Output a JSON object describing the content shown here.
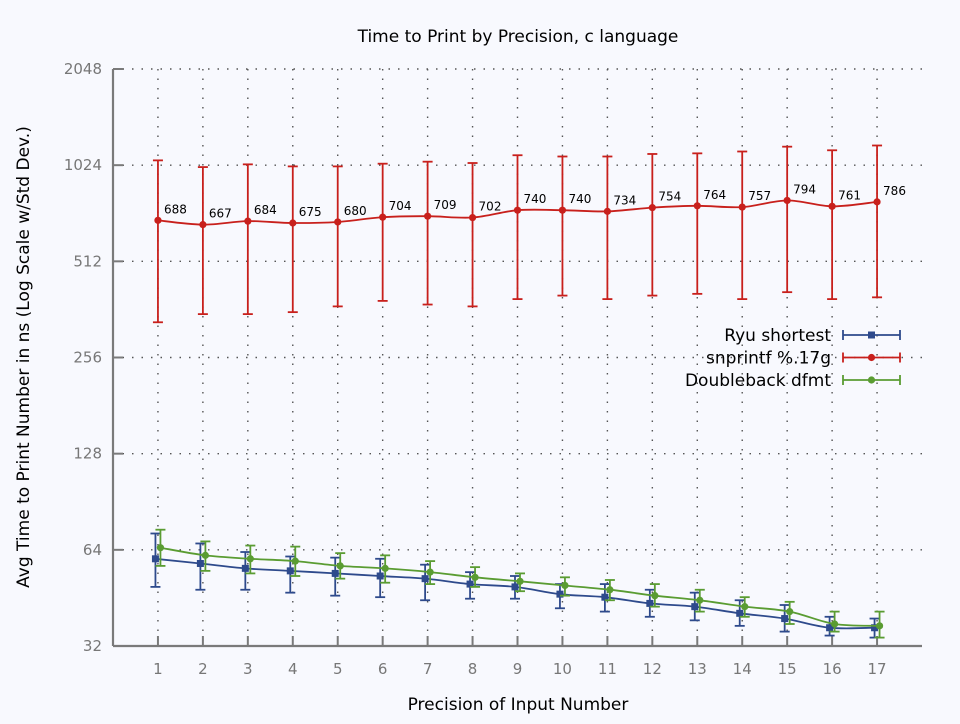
{
  "chart_data": {
    "type": "line",
    "title": "Time to Print by Precision, c language",
    "xlabel": "Precision of Input Number",
    "ylabel": "Avg Time to Print Number in ns (Log Scale w/Std Dev.)",
    "y_scale": "log2",
    "ylim": [
      32,
      2048
    ],
    "xlim": [
      0,
      18
    ],
    "x": [
      1,
      2,
      3,
      4,
      5,
      6,
      7,
      8,
      9,
      10,
      11,
      12,
      13,
      14,
      15,
      16,
      17
    ],
    "y_ticks": [
      32,
      64,
      128,
      256,
      512,
      1024,
      2048
    ],
    "grid": true,
    "legend_position": "right-center",
    "series": [
      {
        "name": "Ryu shortest",
        "color": "#2e4a8c",
        "marker": "square",
        "values": [
          60,
          58,
          56,
          55,
          54,
          53,
          52,
          50,
          49,
          46.5,
          45.5,
          43.5,
          42.5,
          40.5,
          39,
          36.5,
          36.5
        ],
        "err_low": [
          49,
          48,
          48,
          47,
          46,
          45.5,
          44.5,
          45,
          45,
          42,
          41,
          39.5,
          38.5,
          37,
          35.5,
          34.5,
          34
        ],
        "err_high": [
          72,
          67,
          63,
          61,
          60.5,
          60,
          57.5,
          54.5,
          53,
          50,
          50,
          48,
          47,
          44.5,
          43,
          39.5,
          39
        ]
      },
      {
        "name": "snprintf %.17g",
        "color": "#c8201c",
        "marker": "circle",
        "values": [
          688,
          667,
          684,
          675,
          680,
          704,
          709,
          702,
          740,
          740,
          734,
          754,
          764,
          757,
          794,
          761,
          786
        ],
        "labels": [
          "688",
          "667",
          "684",
          "675",
          "680",
          "704",
          "709",
          "702",
          "740",
          "740",
          "734",
          "754",
          "764",
          "757",
          "794",
          "761",
          "786"
        ],
        "err_low": [
          330,
          350,
          350,
          355,
          370,
          385,
          375,
          370,
          390,
          400,
          390,
          400,
          405,
          390,
          410,
          390,
          395
        ],
        "err_high": [
          1060,
          1010,
          1030,
          1015,
          1015,
          1035,
          1050,
          1040,
          1100,
          1090,
          1090,
          1110,
          1115,
          1130,
          1170,
          1140,
          1180
        ]
      },
      {
        "name": "Doubleback dfmt",
        "color": "#5a9c32",
        "marker": "circle",
        "values": [
          65,
          61.5,
          60,
          59,
          57,
          56,
          54.5,
          52.5,
          51,
          49.5,
          48,
          46,
          44.5,
          42.5,
          41,
          37.5,
          37
        ],
        "err_low": [
          57,
          55,
          54,
          53,
          52,
          50.5,
          50,
          49,
          47.5,
          46,
          44.5,
          42.5,
          41,
          39.5,
          37.5,
          35.5,
          34
        ],
        "err_high": [
          74,
          68,
          66,
          65.5,
          62.5,
          61.5,
          59,
          56.5,
          54,
          52.5,
          51.5,
          50,
          48,
          45.5,
          44,
          41,
          41
        ]
      }
    ]
  }
}
